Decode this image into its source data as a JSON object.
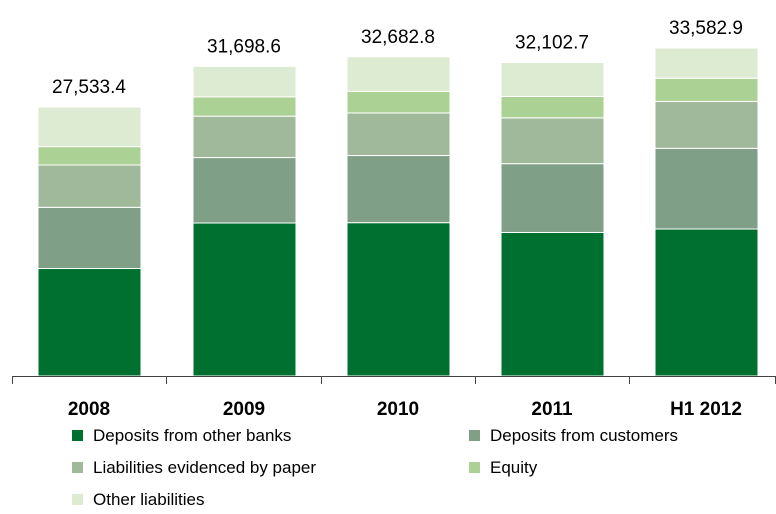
{
  "chart_data": {
    "type": "bar",
    "stacked": true,
    "categories": [
      "2008",
      "2009",
      "2010",
      "2011",
      "H1 2012"
    ],
    "totals": [
      "27,533.4",
      "31,698.6",
      "32,682.8",
      "32,102.7",
      "33,582.9"
    ],
    "series": [
      {
        "name": "Deposits from other banks",
        "color": "#007030",
        "values": [
          11005.2,
          15663.8,
          15699.1,
          14696.4,
          15049.3
        ]
      },
      {
        "name": "Deposits from customers",
        "color": "#7f9f86",
        "values": [
          6263.8,
          6700.6,
          6873.7,
          7042.9,
          8260.6
        ]
      },
      {
        "name": "Liabilities evidenced by paper",
        "color": "#9fb99a",
        "values": [
          4333.9,
          4239.7,
          4359.3,
          4693.4,
          4800.5
        ]
      },
      {
        "name": "Equity",
        "color": "#acd195",
        "values": [
          1880.5,
          1974.5,
          2209.0,
          2186.4,
          2375.9
        ]
      },
      {
        "name": "Other liabilities",
        "color": "#dcebd1",
        "values": [
          4050.0,
          3120.0,
          3541.7,
          3483.6,
          3096.6
        ]
      }
    ],
    "ylim": [
      0,
      35000
    ],
    "grid": false,
    "legend_position": "bottom"
  }
}
